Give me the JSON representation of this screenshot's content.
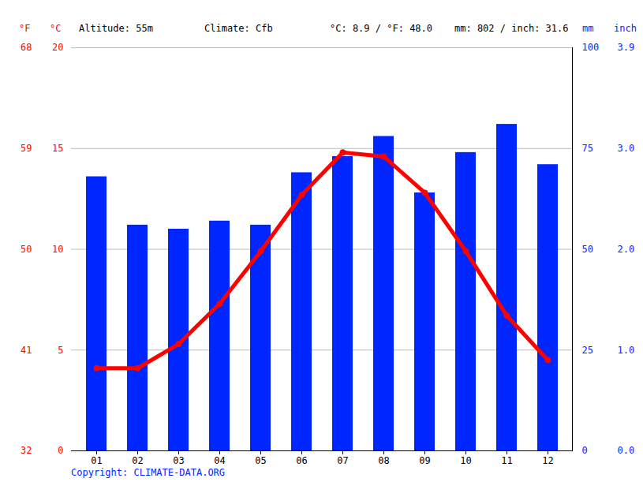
{
  "chart_data": {
    "type": "bar_line",
    "annotations": [
      "Altitude: 55m",
      "Climate: Cfb",
      "°C: 8.9 / °F: 48.0",
      "mm: 802 / inch: 31.6"
    ],
    "caption": "Copyright: CLIMATE-DATA.ORG",
    "categories": [
      "01",
      "02",
      "03",
      "04",
      "05",
      "06",
      "07",
      "08",
      "09",
      "10",
      "11",
      "12"
    ],
    "series": [
      {
        "type": "bar",
        "axis": "y2",
        "color": "#0026ff",
        "values": [
          68,
          56,
          55,
          57,
          56,
          69,
          73,
          78,
          64,
          74,
          81,
          71
        ]
      },
      {
        "type": "line",
        "axis": "y",
        "color": "#ff0000",
        "marker": "circle",
        "values": [
          4.1,
          4.1,
          5.3,
          7.3,
          9.9,
          12.7,
          14.8,
          14.6,
          12.8,
          9.9,
          6.7,
          4.5
        ]
      }
    ],
    "ylabel": "°C",
    "ylabel_alt": "°F",
    "ylim": [
      0,
      20
    ],
    "yticks": [
      0,
      5,
      10,
      15,
      20
    ],
    "yticks_alt": [
      {
        "value": 0,
        "label": "32"
      },
      {
        "value": 5,
        "label": "41"
      },
      {
        "value": 10,
        "label": "50"
      },
      {
        "value": 15,
        "label": "59"
      },
      {
        "value": 20,
        "label": "68"
      }
    ],
    "y2label": "mm",
    "y2label_alt": "inch",
    "y2lim": [
      0,
      100
    ],
    "y2ticks": [
      0,
      25,
      50,
      75,
      100
    ],
    "y2ticks_alt": [
      {
        "value": 0,
        "label": "0.0"
      },
      {
        "value": 25,
        "label": "1.0"
      },
      {
        "value": 50,
        "label": "2.0"
      },
      {
        "value": 75,
        "label": "3.0"
      },
      {
        "value": 100,
        "label": "3.9"
      }
    ],
    "grid": true
  }
}
